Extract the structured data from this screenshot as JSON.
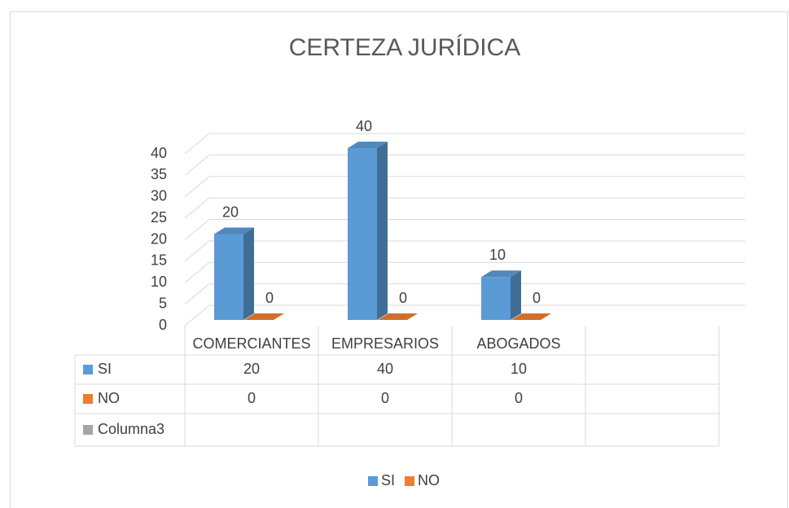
{
  "chart_data": {
    "type": "bar3d",
    "title": "CERTEZA JURÍDICA",
    "categories": [
      "COMERCIANTES",
      "EMPRESARIOS",
      "ABOGADOS",
      null
    ],
    "series": [
      {
        "name": "SI",
        "color": "#5b9bd5",
        "values": [
          20,
          40,
          10,
          null
        ]
      },
      {
        "name": "NO",
        "color": "#ed7d31",
        "values": [
          0,
          0,
          0,
          null
        ]
      },
      {
        "name": "Columna3",
        "color": "#a5a5a5",
        "values": [
          null,
          null,
          null,
          null
        ],
        "in_legend": false
      }
    ],
    "ylim": [
      0,
      40
    ],
    "yticks": [
      0,
      5,
      10,
      15,
      20,
      25,
      30,
      35,
      40
    ],
    "grid": true,
    "data_table": true,
    "legend": "bottom"
  }
}
